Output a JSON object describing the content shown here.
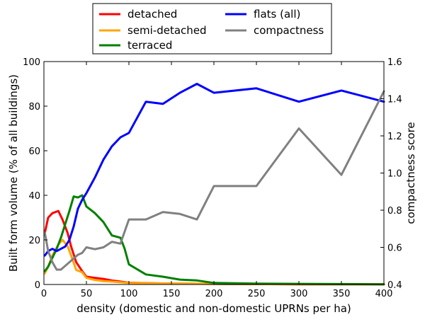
{
  "chart_data": {
    "type": "line",
    "xlabel": "density (domestic and non-domestic UPRNs per ha)",
    "ylabel": "Built form volume (% of all buildings)",
    "y2label": "compactness score",
    "xlim": [
      0,
      400
    ],
    "ylim": [
      0,
      100
    ],
    "y2lim": [
      0.4,
      1.6
    ],
    "xticks": [
      "0",
      "50",
      "100",
      "150",
      "200",
      "250",
      "300",
      "350",
      "400"
    ],
    "yticks": [
      "0",
      "20",
      "40",
      "60",
      "80",
      "100"
    ],
    "y2ticks": [
      "0.4",
      "0.6",
      "0.8",
      "1.0",
      "1.2",
      "1.4",
      "1.6"
    ],
    "grid": false,
    "legend_placement": "top-center",
    "series": [
      {
        "name": "detached",
        "color": "#ff0000",
        "axis": "left",
        "x": [
          1,
          5,
          10,
          17,
          22,
          28,
          32,
          38,
          45,
          50,
          60,
          70,
          80,
          90,
          100,
          150,
          200,
          250,
          300,
          350,
          400
        ],
        "y": [
          23,
          30,
          32,
          33,
          29,
          23,
          17,
          10,
          6,
          3.5,
          3,
          2.5,
          1.8,
          1.3,
          0.8,
          0.4,
          0.3,
          0.2,
          0.1,
          0.1,
          0.1
        ]
      },
      {
        "name": "semi-detached",
        "color": "#ffa500",
        "axis": "left",
        "x": [
          1,
          5,
          10,
          17,
          22,
          28,
          32,
          38,
          45,
          50,
          60,
          70,
          80,
          90,
          100,
          150,
          200,
          250,
          300,
          350,
          400
        ],
        "y": [
          5,
          8,
          13,
          18,
          20,
          17,
          13,
          6.5,
          5.5,
          3,
          2,
          1.5,
          1.3,
          1,
          0.7,
          0.4,
          0.3,
          0.2,
          0.1,
          0.1,
          0.1
        ]
      },
      {
        "name": "terraced",
        "color": "#008000",
        "axis": "left",
        "x": [
          1,
          5,
          10,
          15,
          20,
          25,
          30,
          35,
          40,
          45,
          50,
          60,
          70,
          75,
          80,
          90,
          95,
          100,
          120,
          140,
          160,
          180,
          200,
          250,
          300,
          350,
          400
        ],
        "y": [
          6,
          8,
          12,
          16,
          21,
          27,
          33,
          39.5,
          39,
          40,
          35,
          32,
          28,
          25,
          22,
          21,
          16,
          9,
          4.5,
          3.5,
          2.2,
          1.8,
          0.7,
          0.4,
          0.3,
          0.2,
          0.1
        ]
      },
      {
        "name": "flats (all)",
        "color": "#0000ff",
        "axis": "left",
        "x": [
          1,
          5,
          10,
          15,
          20,
          25,
          30,
          35,
          40,
          45,
          50,
          60,
          70,
          80,
          90,
          100,
          120,
          140,
          160,
          180,
          200,
          250,
          300,
          350,
          400
        ],
        "y": [
          13,
          15,
          16,
          15,
          16,
          17,
          20,
          26,
          34,
          38,
          41,
          48,
          56,
          62,
          66,
          68,
          82,
          81,
          86,
          90,
          86,
          88,
          82,
          87,
          82
        ]
      },
      {
        "name": "compactness",
        "color": "#808080",
        "axis": "right",
        "x": [
          1,
          5,
          10,
          15,
          20,
          25,
          30,
          35,
          40,
          45,
          50,
          60,
          70,
          80,
          90,
          100,
          120,
          140,
          160,
          180,
          200,
          250,
          300,
          350,
          400
        ],
        "y": [
          0.68,
          0.58,
          0.52,
          0.48,
          0.48,
          0.5,
          0.52,
          0.54,
          0.56,
          0.57,
          0.6,
          0.59,
          0.6,
          0.63,
          0.62,
          0.75,
          0.75,
          0.79,
          0.78,
          0.75,
          0.93,
          0.93,
          1.24,
          0.99,
          1.44
        ]
      }
    ]
  }
}
